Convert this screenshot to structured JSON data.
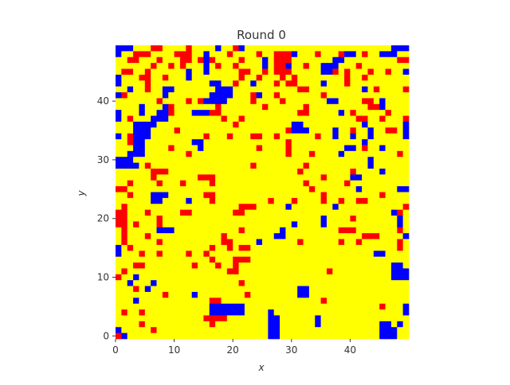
{
  "chart_data": {
    "type": "heatmap",
    "title": "Round 0",
    "xlabel": "x",
    "ylabel": "y",
    "xlim": [
      0,
      50
    ],
    "ylim": [
      0,
      50
    ],
    "x_ticks": [
      0,
      10,
      20,
      30,
      40
    ],
    "y_ticks": [
      0,
      10,
      20,
      30,
      40
    ],
    "grid": false,
    "legend": "none",
    "grid_size": [
      50,
      50
    ],
    "colors": {
      "0": "#ffff00",
      "1": "#ff0000",
      "2": "#0000ff"
    },
    "cells_note": "rows listed top (y=49) to bottom (y=0); Y=yellow, R=red, B=blue; cell states estimated from the image",
    "cells": [
      "BBBYYYRRYYYYRYYYYBYYRBYYYYYYYYYYYYYYYYYYYYYYYYYBBB",
      "BYYRRRYYYYRRRYYBYYYRYYYYRYYRRRBYYYRYYYRBBYRYYBBBYY",
      "YYRRYYYRYYYRRYRBRYYYYRYYYBYRRRYYYYYYYBBYYYYYYYYYRR",
      "YYYYYYRYYRYRYYYBYRYYRYYYYBYRRBYYRYYBBBYYYRYYYYYYYY",
      "YRRYYRYYYYYYBYYBYYYYYRRYYRYRRRYYYYYBBRYRYYYRYYRYYB",
      "BYYYRRYYRYYYBYYYYYYYYRYYRYYYRYRYYYYYYYYRYYRYYYYYYY",
      "BYYYYRYYYYYYYYYYBBYYRYYBYYYRYRRYYYYBYYYRYYYYYYYYYY",
      "YYBYYRYYBBYYYYYYYBBBYYYYYYYYYYYRRYYYYYYYYYBYRYYYYR",
      "BRYYYYYYBYYYYYYYBBBBYYYRBYYRYYYYYYYRYYYYYYYYYYYYYY",
      "YYYYYYYRYYYYRYRBBBBYYYYRYYYYRYYYYYYYBBYYYYRRYBYYYY",
      "YYYYBYYYBRYYYYYYYRYYYYYYYRYYYYYYRYYYYYYYYYYRRBYYYY",
      "BYYYBYYBBRYYYBBBRRYYYYYYYYYYYYYRRYYYYYBYRYYYYYRYYY",
      "BYRYYYBBBYYYYYYYYYRYYRYYYYYYYYYYYYYYYYYYYRRYYRYYYR",
      "YYYBBBBYYYYYYYYYYYYYRYYYYYYYYYBBYYYYYYYYYYBYYYYYYB",
      "YYYBBBYYYYRYYYYYYYYYYYYYYYYYYRBBBYYYYBYYRYYBYYRRYB",
      "BYRBBBYYYYYYYYYRYYYRYYYRRYYRYYYYYYRYYBYYBYYBYYYYYB",
      "YYRBBYYYYYYYYBBYYYYYYYYYYYYYYRYYYYYYYYYYYYBYYYYYYY",
      "YYYBBYYYYRYYYYBYYYYYYYYYRYYYYRYYYYYYYYYBBYRYYBYYYY",
      "YYBBBYYYYYYYRYYYYYYYYYYYYYYYYRYYYRYYYYBYYYYYYYYYRY",
      "BBBYYYYYYYYYYYYYYYYYYYYYYYYYYYYYYYYYYYYYYYYBYYYYYY",
      "BBBBYRYYYYYYYYYYYYYYYYYRYYYYYYYYRYYYYYYYYYYBYYYYYY",
      "YYYYYYRRRYYYYYYYYYYYYYYYYYYYYYYRYYYYYYYYRYYYYBYYYY",
      "YYYYYYRYYYYYYYRRRYYYYYYYYYYYYYYYYYYRYYYYBBYYYYYYYY",
      "YYRYYYYRYYYRYYYYRYYYYYYYYYYYYYYYRYYYYYYRYYYYYYYYYY",
      "RRYYYYYYYYYYYYYYYYYYYYYYYYYYYYYYYRYYYYYYYBYYYYYYBB",
      "YYRYYYBBBYYYYYYRRYYYYYYYYYYYYYYYYYYRYYYYYYYYYRYYYY",
      "YYYYYYBBYYYYBYYYRYYYYYYYYYRYYYRYYYYRYYRYYRRYYYYYYY",
      "YRYYYYYYYYYYYYYYYYYYYRRRYYYYYBYYYYYYYBYYYYYYYYYYYR",
      "RRYYYRYYYYYRRYYYYYYYRRYYYYYYYYYYYYYYYYYYYYYYYYYBRY",
      "RRYYYYYRYYYYYYYYYYYYYYYYYYYYYYYYYYYBYYYYRYYYYYYYBY",
      "RRYRYYYRYYYYYYYYYYYYYYYYYYYYYYBYYYYBYYYYYYYYYYYYBY",
      "YRYYYYYBBBYYYYYYYYYYYRYYYYYYBYYYYYYYYYRRRYYYYYYYRY",
      "YRYYYRYYYYYYYYYYYYRYYYYYYYYBBYYYYYYYYYYYYYRRRYYYYB",
      "YRYYYYYRYYYYYYYYYYRRYYYYBYYYYYYRYYYYYYRYYRYYYYYYRY",
      "BYRYYYYYYYYYYYYYRYYRYRRYYYYYYYYYYYYYYYYYYYYYYYYYRY",
      "BYYYRYYRYYYYRYYRYYYYYYYYYYYYYYYYYYYYYYYYYYYYBBYYYY",
      "YYYYYYYYYYYYYYYYRYYYRRRYYYYYYYYYYYYYYYYYYYYYYYYYYY",
      "YYYRRYYYYYYYYRYYYRYYRYYYYYYYYYYYYYYYYYYYYYYYYYYBBY",
      "YRYYYYYYYYYYYYYYYYYRRYYYYYYYYYYYYYYYRYYYYYYYYYYBBB",
      "RYYBYYYYYYYYYYYYYYYYYYYYYYYYYYYYYYYYYYYYYYYYYYYBBB",
      "YYBYYYBYYYYYYYYYYYYYYRYYYYYYYYYYYYYYYYYYYYYYYYYYYY",
      "YYYRYBYYYYYYYYYYYYYYYYYYYYYYYYYBBYYYYYYYYYYYYYYYYY",
      "YYYYYYYYRYYYYBYYYYYYYYRYYYYYYYYBBYYYYYYYYYYYYYYYYY",
      "YYYBYYYYYYYYYYYYRRYYYYYYYYYYYYYYYYYRYYYYYYYYYYYYYY",
      "YYYYYYYYYYYYYYYYBBBBBBYYYYYYYYYYYYYYYYYYYYYYYRYYYB",
      "YRYYRYYYYYYYYYYYBBBBBBYYYYBYYYYYYYYYYYYYYYYYYYYYYB",
      "YYYYYYYYYYYYYYYRRRRYYYYYYYBBYYYYYYBYYYYYYYYYYYYYYY",
      "YYYYRYYYYYYYYYYYRYYYYYYYYYBBYYYYYYBYYYYYYYYYYBBYBY",
      "BYYYYYRYYYYYYYYYYYYYYYYYYYBBYYYYYYYYYYYYYYYYYBBBYY",
      "RBYYYYYYYYYYYYYYYYYYYYYYYYBBYYYYYYYYYYYYYYYYYBBBYY"
    ]
  }
}
